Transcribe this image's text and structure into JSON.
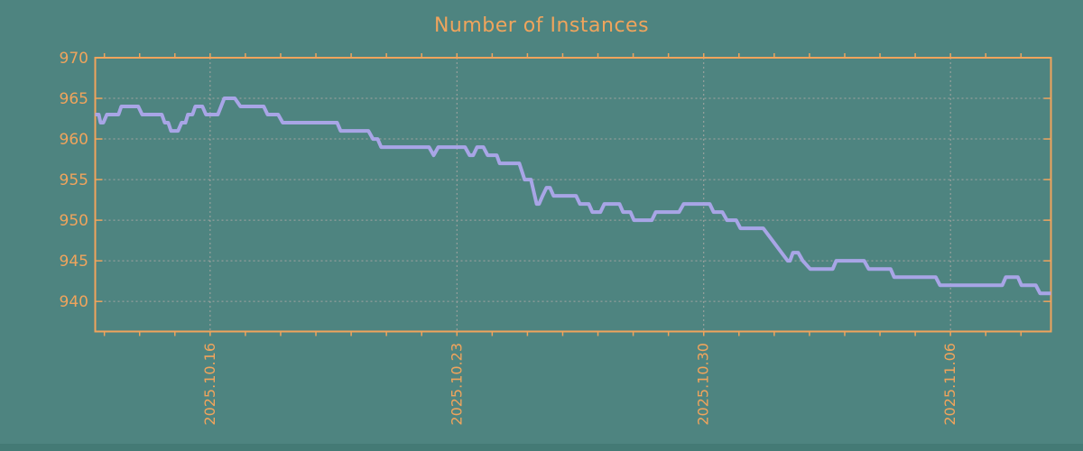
{
  "title": "Number of Instances",
  "colors": {
    "background": "#4e8480",
    "axis_orange": "#f0a45c",
    "line_purple": "#a8a5e6",
    "grid_gray": "#a5a5a2",
    "bottom_edge": "#447a75"
  },
  "chart_data": {
    "type": "line",
    "title": "Number of Instances",
    "x_unit": "days relative to 2025.10.16 (one minor tick per day)",
    "xlim": [
      -3.26,
      23.85
    ],
    "ylim": [
      936.3,
      970
    ],
    "grid": "dashed",
    "legend": "none",
    "xticks": [
      {
        "pos": 0,
        "label": "2025.10.16"
      },
      {
        "pos": 7,
        "label": "2025.10.23"
      },
      {
        "pos": 14,
        "label": "2025.10.30"
      },
      {
        "pos": 21,
        "label": "2025.11.06"
      }
    ],
    "yticks": [
      {
        "pos": 940,
        "label": "940"
      },
      {
        "pos": 945,
        "label": "945"
      },
      {
        "pos": 950,
        "label": "950"
      },
      {
        "pos": 955,
        "label": "955"
      },
      {
        "pos": 960,
        "label": "960"
      },
      {
        "pos": 965,
        "label": "965"
      },
      {
        "pos": 970,
        "label": "970"
      }
    ],
    "ygrid": [
      940,
      945,
      950,
      955,
      960,
      965
    ],
    "xgrid": [
      0,
      7,
      14,
      21
    ],
    "minor_x_ticks_days": [
      -3,
      -2,
      -1,
      0,
      1,
      2,
      3,
      4,
      5,
      6,
      7,
      8,
      9,
      10,
      11,
      12,
      13,
      14,
      15,
      16,
      17,
      18,
      19,
      20,
      21,
      22,
      23
    ],
    "series": [
      {
        "name": "instances",
        "points": [
          [
            -3.26,
            963
          ],
          [
            -3.16,
            963
          ],
          [
            -3.11,
            962
          ],
          [
            -3.03,
            962
          ],
          [
            -2.93,
            963
          ],
          [
            -2.6,
            963
          ],
          [
            -2.52,
            964
          ],
          [
            -2.04,
            964
          ],
          [
            -1.93,
            963
          ],
          [
            -1.37,
            963
          ],
          [
            -1.29,
            962
          ],
          [
            -1.19,
            962
          ],
          [
            -1.11,
            961
          ],
          [
            -0.91,
            961
          ],
          [
            -0.81,
            962
          ],
          [
            -0.7,
            962
          ],
          [
            -0.63,
            963
          ],
          [
            -0.5,
            963
          ],
          [
            -0.42,
            964
          ],
          [
            -0.22,
            964
          ],
          [
            -0.12,
            963
          ],
          [
            0.22,
            963
          ],
          [
            0.4,
            965
          ],
          [
            0.7,
            965
          ],
          [
            0.86,
            964
          ],
          [
            1.52,
            964
          ],
          [
            1.63,
            963
          ],
          [
            1.93,
            963
          ],
          [
            2.06,
            962
          ],
          [
            3.6,
            962
          ],
          [
            3.7,
            961
          ],
          [
            4.49,
            961
          ],
          [
            4.62,
            960
          ],
          [
            4.75,
            960
          ],
          [
            4.85,
            959
          ],
          [
            6.21,
            959
          ],
          [
            6.34,
            958
          ],
          [
            6.47,
            959
          ],
          [
            7.23,
            959
          ],
          [
            7.36,
            958
          ],
          [
            7.46,
            958
          ],
          [
            7.57,
            959
          ],
          [
            7.75,
            959
          ],
          [
            7.87,
            958
          ],
          [
            8.13,
            958
          ],
          [
            8.21,
            957
          ],
          [
            8.77,
            957
          ],
          [
            8.92,
            955
          ],
          [
            9.1,
            955
          ],
          [
            9.26,
            952
          ],
          [
            9.33,
            952
          ],
          [
            9.43,
            953
          ],
          [
            9.54,
            954
          ],
          [
            9.64,
            954
          ],
          [
            9.74,
            953
          ],
          [
            10.38,
            953
          ],
          [
            10.49,
            952
          ],
          [
            10.74,
            952
          ],
          [
            10.84,
            951
          ],
          [
            11.07,
            951
          ],
          [
            11.18,
            952
          ],
          [
            11.61,
            952
          ],
          [
            11.71,
            951
          ],
          [
            11.92,
            951
          ],
          [
            12.02,
            950
          ],
          [
            12.53,
            950
          ],
          [
            12.64,
            951
          ],
          [
            13.3,
            951
          ],
          [
            13.43,
            952
          ],
          [
            14.17,
            952
          ],
          [
            14.28,
            951
          ],
          [
            14.53,
            951
          ],
          [
            14.66,
            950
          ],
          [
            14.92,
            950
          ],
          [
            15.04,
            949
          ],
          [
            15.69,
            949
          ],
          [
            16.38,
            945
          ],
          [
            16.45,
            945
          ],
          [
            16.53,
            946
          ],
          [
            16.68,
            946
          ],
          [
            16.81,
            945
          ],
          [
            17.02,
            944
          ],
          [
            17.66,
            944
          ],
          [
            17.76,
            945
          ],
          [
            18.55,
            945
          ],
          [
            18.68,
            944
          ],
          [
            19.3,
            944
          ],
          [
            19.4,
            943
          ],
          [
            20.58,
            943
          ],
          [
            20.7,
            942
          ],
          [
            22.47,
            942
          ],
          [
            22.57,
            943
          ],
          [
            22.91,
            943
          ],
          [
            23.01,
            942
          ],
          [
            23.42,
            942
          ],
          [
            23.54,
            941
          ],
          [
            23.85,
            941
          ]
        ]
      }
    ]
  }
}
